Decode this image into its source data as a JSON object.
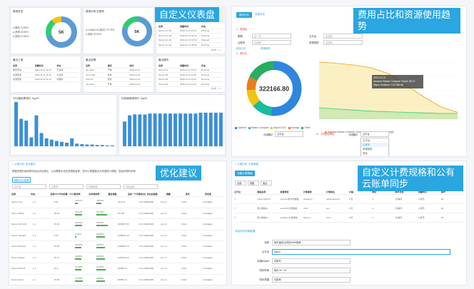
{
  "q1": {
    "banner": "自定义仪表盘",
    "donut1": {
      "title": "费用总览",
      "center": "5K",
      "legend": [
        "● 服务  70.95%",
        "● 资源  18.58%",
        "● 其他  10.48%"
      ],
      "slices": [
        70.95,
        18.58,
        10.48
      ],
      "colors": [
        "#5b9bd5",
        "#2ecc71",
        "#f1c40f"
      ]
    },
    "donut2": {
      "title": "费用分布/云账号",
      "center": "5K",
      "legend": [
        "● CostAll-01(测试) 79.75%",
        "● 其他 20.25%"
      ],
      "slices": [
        79.75,
        20.25
      ],
      "colors": [
        "#5b9bd5",
        "#2ecc71"
      ]
    },
    "table1": {
      "title": "最近资源",
      "head": [
        "名称",
        "创建时间",
        "状态"
      ],
      "rows": [
        [
          "Server-sm-01",
          "2019-11-11 11:46",
          "Running"
        ],
        [
          "Server-sm-02",
          "2019-11-12 00:22",
          "Running"
        ],
        [
          "Server-sm-03",
          "2019-11-13 12:00",
          "Stopped"
        ],
        [
          "Server-sm-04",
          "2019-11-14 08:30",
          "Running"
        ]
      ],
      "pager": "共8条 < 1 >"
    },
    "table2": {
      "title": "最近工单",
      "head": [
        "名称",
        "创建时间",
        "状态"
      ],
      "rows": [
        [
          "服务申请",
          "2019-11-11 11:44",
          "已完成"
        ],
        [
          "资源变更",
          "2019-11-11 11:44",
          "已完成"
        ],
        [
          "资源回收",
          "2019-11-11 11:44",
          "处理中"
        ]
      ]
    },
    "table3": {
      "title": "最近告警",
      "head": [
        "名称",
        "级别",
        "时间"
      ],
      "rows": [
        [
          "cpu-high",
          "严重",
          "2019-11-11"
        ],
        [
          "mem-high",
          "警告",
          "2019-11-11"
        ],
        [
          "disk-full",
          "警告",
          "2019-11-12"
        ],
        [
          "net-down",
          "严重",
          "2019-11-12"
        ]
      ]
    },
    "table4": {
      "title": "最近操作",
      "head": [
        "名称",
        "创建时间",
        "状态"
      ],
      "rows": [
        [
          "Server-01",
          "2019-11-11 11:44",
          "Running"
        ],
        [
          "Server-02",
          "2019-11-11 11:44",
          "Running"
        ],
        [
          "Server-03",
          "2019-11-11 11:44",
          "Running"
        ],
        [
          "Server-04",
          "2019-11-11 11:44",
          "Running"
        ]
      ],
      "pager": "共8条 < 1 >"
    },
    "bar1": {
      "title": "CPU使用率排行 Top20",
      "values": [
        100,
        62,
        58,
        20,
        70,
        30,
        18,
        15,
        12,
        10,
        8,
        18,
        6,
        5,
        4,
        4,
        3,
        3,
        2,
        2
      ]
    },
    "bar2": {
      "title": "内存使用率排行 Top20",
      "values": [
        56,
        70,
        72,
        72,
        72,
        74,
        74,
        74,
        74,
        74,
        74,
        74,
        74,
        74,
        74,
        76,
        76,
        76,
        76,
        76
      ]
    }
  },
  "q2": {
    "banner": "费用占比和资源使用趋势",
    "tabs": [
      "费用分析",
      "资源分析"
    ],
    "filters": [
      {
        "label": "账期",
        "value": "近一月"
      },
      {
        "label": "云平台",
        "value": "请选择"
      },
      {
        "label": "云账号",
        "value": "请选择"
      },
      {
        "label": "资源类型",
        "value": "请选择"
      }
    ],
    "step1": "1、筛选区",
    "step2": "2、展示区",
    "step3": "3、分组选择区",
    "view_options": [
      "费用占比",
      "资源趋势"
    ],
    "donut": {
      "center": "322166.80",
      "slices": [
        52,
        12,
        10,
        8,
        18
      ],
      "colors": [
        "#2e86de",
        "#1abc9c",
        "#f1c40f",
        "#e67e22",
        "#27ae60"
      ],
      "legend": [
        "Optimal",
        "Elastic Compute",
        "Aliyun ECS",
        "Storage",
        "Other"
      ]
    },
    "tooltip": {
      "title": "2019-10-01",
      "lines": [
        "Amazon Elastic Compute Cloud: 48.74",
        "Aliyun Instance: 121,086.66"
      ]
    },
    "trend": {
      "values": [
        100,
        98,
        95,
        90,
        80,
        60,
        40,
        22,
        12
      ],
      "values2": [
        20,
        18,
        16,
        14,
        13,
        12,
        11,
        10,
        10
      ]
    },
    "trend_legend": [
      "Amazon Elastic Compute Cloud",
      "Machine",
      "Storage"
    ],
    "group_label": "分组展示",
    "group_value": "云平台",
    "dropdown": [
      "云平台",
      "云账号",
      "资源类型",
      "项目",
      "部门"
    ]
  },
  "q3": {
    "banner": "优化建议",
    "breadcrumb": "< 计费分析  优化建议",
    "hint": "根据资源的使用情况给出优化建议，以及需要优化的资源数量等，您可以根据建议对资源进行调整，提高资源利用率",
    "button": "调整优化配置",
    "filters": [
      "云平台",
      "云账号",
      "资源类型",
      "优化建议"
    ],
    "head": [
      "名称",
      "状态",
      "当前CPU平均负载",
      "CPU使用率",
      "内存使用率",
      "建议规格",
      "当前一个月费用(元)",
      "优化后规格",
      "调整",
      "优化",
      "所有者"
    ],
    "rows": [
      {
        "name": "Server-ycyn",
        "cpu": "8.82",
        "cpu_pct": "10.07%",
        "cpu_f": 0.1,
        "mem_pct": "18.06%",
        "mem_f": 0.18,
        "spec": "4072.11",
        "cost": "1C1.0GB(2GB)",
        "opt": "ecs.n1",
        "a": "IsSet",
        "b": "Invariajian"
      },
      {
        "name": "Server-WiDzj",
        "cpu": "15.34",
        "cpu_pct": "25.14%",
        "cpu_f": 0.25,
        "mem_pct": "35.76%",
        "mem_f": 0.36,
        "spec": "871.86",
        "cost": "1C1.0GB(2GB)",
        "opt": "ecs.n1",
        "a": "IsSet",
        "b": "Invariajian"
      },
      {
        "name": "Server-SzY1m8",
        "cpu": "15.46",
        "cpu_pct": "22.64%",
        "cpu_f": 0.23,
        "mem_pct": "38.96%",
        "mem_f": 0.39,
        "spec": "3498357.30",
        "cost": "1C1.0GB(2GB)",
        "opt": "ecs.n1",
        "a": "IsSet",
        "b": "Invariajian"
      },
      {
        "name": "Server-GyhqEt",
        "cpu": "5.06",
        "cpu_pct": "4.62%",
        "cpu_f": 0.05,
        "mem_pct": "28.86%",
        "mem_f": 0.29,
        "spec": "1158051.40",
        "cost": "1C1.0GB(2GB)",
        "opt": "ecs.n1",
        "a": "IsSet",
        "b": "Invariajian"
      },
      {
        "name": "Server-Bmwwe",
        "cpu": "15.25",
        "cpu_pct": "20.56%",
        "cpu_f": 0.21,
        "mem_pct": "28.86%",
        "mem_f": 0.29,
        "spec": "1158053.75",
        "cost": "1C1.0GB(2GB)",
        "opt": "ecs.n1",
        "a": "IsSet",
        "b": "Invariajian"
      },
      {
        "name": "Server-Dpqsb",
        "cpu": "15.72",
        "cpu_pct": "20.56%",
        "cpu_f": 0.21,
        "mem_pct": "28.86%",
        "mem_f": 0.29,
        "spec": "1158102.20",
        "cost": "1C1.0GB(2GB)",
        "opt": "ecs.n1",
        "a": "IsSet",
        "b": "Invariajian"
      },
      {
        "name": "Server-Sir1m8",
        "cpu": "15.9",
        "cpu_pct": "22.40%",
        "cpu_f": 0.22,
        "mem_pct": "32.96%",
        "mem_f": 0.33,
        "spec": "60088.34",
        "cost": "1C1.0GB(2GB)",
        "opt": "ecs.n1",
        "a": "IsSet",
        "b": "Invariajian"
      },
      {
        "name": "Server-jNubt",
        "cpu": "15.82",
        "cpu_pct": "27.45%",
        "cpu_f": 0.27,
        "mem_pct": "28.86%",
        "mem_f": 0.29,
        "spec": "60566.12",
        "cost": "1C1.0GB(2GB)",
        "opt": "ecs.n1",
        "a": "IsSet",
        "b": "Invariajian"
      }
    ]
  },
  "q4": {
    "banner": "自定义计费规格和公有云账单同步",
    "breadcrumb": "< 计费分析  计费规格",
    "button": "创建计费规格",
    "tabs": [
      "全部",
      "规格",
      "组合"
    ],
    "head": [
      "云平台",
      "规格名称",
      "资源类型",
      "计费规则",
      "计费单位",
      "价格",
      "单位",
      "同步状态",
      "创建时间",
      "操作"
    ],
    "rows": [
      [
        "nXpecndtA 01",
        "ecs(ecs)的计费规格",
        "Host(ecs)",
        "rdsdynamic1.0",
        "1/天",
        "3",
        "元/每月",
        "人民币",
        "25"
      ],
      [
        "默认规格01",
        "ecs/CPU计费规格",
        "CPU",
        "cpu",
        "1/天",
        "4",
        "元/每月",
        "人民币",
        "25"
      ],
      [
        "默认规格02",
        "ecs/Mem计费规格",
        "Memory",
        "mem",
        "1/天",
        "3",
        "元/每月",
        "人民币",
        "25"
      ]
    ],
    "form_title": "添加同步账单配置",
    "form": [
      {
        "label": "名称",
        "value": "每天凌晨0点同步AWS账单"
      },
      {
        "label": "云平台",
        "value": "Aliyun"
      },
      {
        "label": "存储bucket",
        "value": "请填写"
      },
      {
        "label": "同步时间",
        "value": "每天 00 : 00"
      },
      {
        "label": "同步范围",
        "value": "请选择"
      }
    ]
  }
}
